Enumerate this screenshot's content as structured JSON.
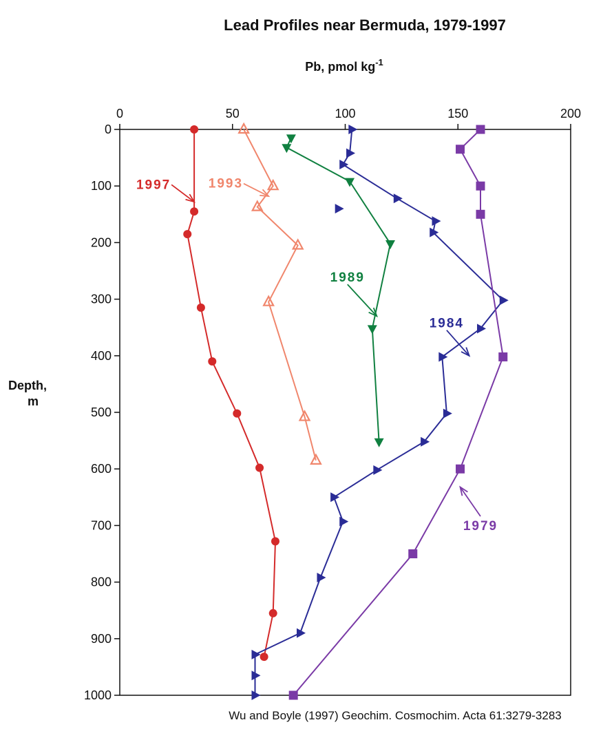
{
  "chart_data": {
    "type": "line",
    "title": "Lead Profiles near Bermuda, 1979-1997",
    "xlabel": "Pb, pmol kg",
    "xlabel_superscript": "-1",
    "ylabel_line1": "Depth,",
    "ylabel_line2": "m",
    "x_axis_position": "top",
    "y_inverted": true,
    "xlim": [
      0,
      200
    ],
    "ylim": [
      0,
      1000
    ],
    "x_ticks": [
      0,
      50,
      100,
      150,
      200
    ],
    "y_ticks": [
      0,
      100,
      200,
      300,
      400,
      500,
      600,
      700,
      800,
      900,
      1000
    ],
    "grid": false,
    "citation": "Wu and Boyle (1997) Geochim. Cosmochim. Acta 61:3279-3283",
    "series": [
      {
        "name": "1997",
        "color": "#d42a2a",
        "marker": "circle",
        "points": [
          [
            33,
            0
          ],
          [
            33,
            145
          ],
          [
            30,
            185
          ],
          [
            36,
            315
          ],
          [
            41,
            410
          ],
          [
            52,
            502
          ],
          [
            62,
            598
          ],
          [
            69,
            728
          ],
          [
            68,
            855
          ],
          [
            64,
            932
          ]
        ]
      },
      {
        "name": "1993",
        "color": "#f0866c",
        "marker": "triangle-up",
        "points": [
          [
            55,
            0
          ],
          [
            68,
            100
          ],
          [
            61,
            137
          ],
          [
            79,
            205
          ],
          [
            66,
            305
          ],
          [
            82,
            508
          ],
          [
            87,
            585
          ]
        ]
      },
      {
        "name": "1989",
        "color": "#108040",
        "marker": "triangle-down",
        "points": [
          [
            76,
            15
          ],
          [
            74,
            32
          ],
          [
            102,
            92
          ],
          [
            120,
            202
          ],
          [
            112,
            352
          ],
          [
            115,
            552
          ]
        ]
      },
      {
        "name": "1984",
        "color": "#2a2c96",
        "marker": "triangle-right",
        "points": [
          [
            103,
            0
          ],
          [
            102,
            42
          ],
          [
            99,
            62
          ],
          [
            123,
            122
          ],
          [
            140,
            162
          ],
          [
            139,
            182
          ],
          [
            170,
            302
          ],
          [
            160,
            352
          ],
          [
            143,
            402
          ],
          [
            145,
            502
          ],
          [
            135,
            552
          ],
          [
            114,
            602
          ],
          [
            95,
            650
          ],
          [
            99,
            693
          ],
          [
            89,
            792
          ],
          [
            80,
            890
          ],
          [
            60,
            928
          ],
          [
            60,
            965
          ],
          [
            60,
            1000
          ]
        ]
      },
      {
        "name": "1984-isolated",
        "color": "#2a2c96",
        "marker": "triangle-right",
        "no_line": true,
        "points": [
          [
            97,
            140
          ]
        ]
      },
      {
        "name": "1979",
        "color": "#7a3aa6",
        "marker": "square",
        "points": [
          [
            160,
            0
          ],
          [
            151,
            35
          ],
          [
            160,
            100
          ],
          [
            160,
            150
          ],
          [
            170,
            402
          ],
          [
            151,
            600
          ],
          [
            130,
            750
          ],
          [
            77,
            1000
          ]
        ]
      }
    ],
    "annotations": [
      {
        "text": "1997",
        "color": "#d42a2a",
        "at": [
          15,
          105
        ],
        "arrow_to": [
          33,
          128
        ]
      },
      {
        "text": "1993",
        "color": "#f0866c",
        "at": [
          47,
          103
        ],
        "arrow_to": [
          66,
          118
        ]
      },
      {
        "text": "1989",
        "color": "#108040",
        "at": [
          101,
          269
        ],
        "arrow_to": [
          114,
          330
        ]
      },
      {
        "text": "1984",
        "color": "#2a2c96",
        "at": [
          145,
          350
        ],
        "arrow_to": [
          155,
          400
        ]
      },
      {
        "text": "1979",
        "color": "#7a3aa6",
        "at": [
          160,
          708
        ],
        "arrow_to": [
          151,
          632
        ]
      }
    ]
  }
}
